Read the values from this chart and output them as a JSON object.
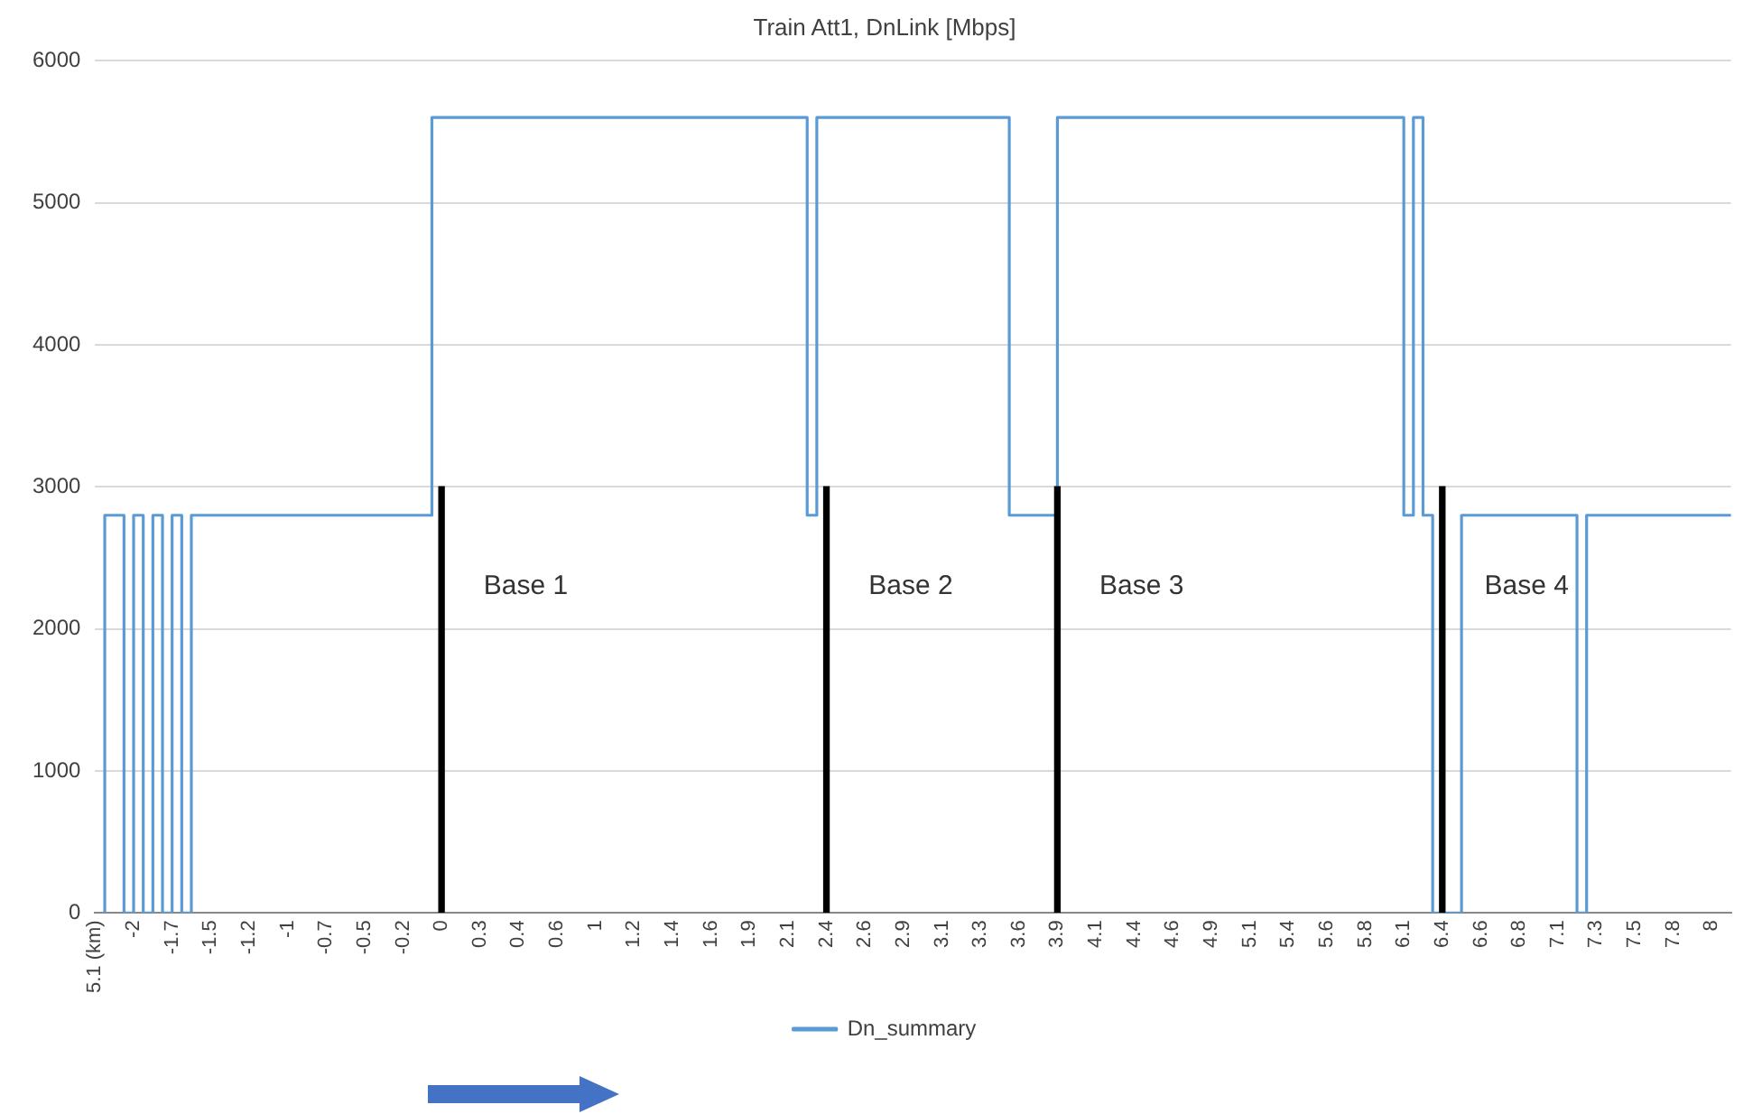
{
  "chart_data": {
    "type": "step",
    "title": "Train Att1, DnLink [Mbps]",
    "categories": [
      "5.1 (km)",
      null,
      null,
      null,
      "-2",
      null,
      null,
      null,
      "-1.7",
      null,
      null,
      null,
      "-1.5",
      null,
      null,
      null,
      "-1.2",
      null,
      null,
      null,
      "-1",
      null,
      null,
      null,
      "-0.7",
      null,
      null,
      null,
      "-0.5",
      null,
      null,
      null,
      "-0.2",
      null,
      null,
      null,
      "0",
      null,
      null,
      null,
      "0.3",
      null,
      null,
      null,
      "0.4",
      null,
      null,
      null,
      "0.6",
      null,
      null,
      null,
      "1",
      null,
      null,
      null,
      "1.2",
      null,
      null,
      null,
      "1.4",
      null,
      null,
      null,
      "1.6",
      null,
      null,
      null,
      "1.9",
      null,
      null,
      null,
      "2.1",
      null,
      null,
      null,
      "2.4",
      null,
      null,
      null,
      "2.6",
      null,
      null,
      null,
      "2.9",
      null,
      null,
      null,
      "3.1",
      null,
      null,
      null,
      "3.3",
      null,
      null,
      null,
      "3.6",
      null,
      null,
      null,
      "3.9",
      null,
      null,
      null,
      "4.1",
      null,
      null,
      null,
      "4.4",
      null,
      null,
      null,
      "4.6",
      null,
      null,
      null,
      "4.9",
      null,
      null,
      null,
      "5.1",
      null,
      null,
      null,
      "5.4",
      null,
      null,
      null,
      "5.6",
      null,
      null,
      null,
      "5.8",
      null,
      null,
      null,
      "6.1",
      null,
      null,
      null,
      "6.4",
      null,
      null,
      null,
      "6.6",
      null,
      null,
      null,
      "6.8",
      null,
      null,
      null,
      "7.1",
      null,
      null,
      null,
      "7.3",
      null,
      null,
      null,
      "7.5",
      null,
      null,
      null,
      "7.8",
      null,
      null,
      null,
      "8",
      null,
      null
    ],
    "series": [
      {
        "name": "Dn_summary",
        "color": "#5b9bd5",
        "values": [
          null,
          0,
          2800,
          2800,
          0,
          2800,
          0,
          2800,
          0,
          2800,
          0,
          2800,
          2800,
          2800,
          2800,
          2800,
          2800,
          2800,
          2800,
          2800,
          2800,
          2800,
          2800,
          2800,
          2800,
          2800,
          2800,
          2800,
          2800,
          2800,
          2800,
          2800,
          2800,
          2800,
          2800,
          2800,
          5600,
          5600,
          5600,
          5600,
          5600,
          5600,
          5600,
          5600,
          5600,
          5600,
          5600,
          5600,
          5600,
          5600,
          5600,
          5600,
          5600,
          5600,
          5600,
          5600,
          5600,
          5600,
          5600,
          5600,
          5600,
          5600,
          5600,
          5600,
          5600,
          5600,
          5600,
          5600,
          5600,
          5600,
          5600,
          5600,
          5600,
          5600,
          5600,
          2800,
          5600,
          5600,
          5600,
          5600,
          5600,
          5600,
          5600,
          5600,
          5600,
          5600,
          5600,
          5600,
          5600,
          5600,
          5600,
          5600,
          5600,
          5600,
          5600,
          5600,
          2800,
          2800,
          2800,
          2800,
          2800,
          5600,
          5600,
          5600,
          5600,
          5600,
          5600,
          5600,
          5600,
          5600,
          5600,
          5600,
          5600,
          5600,
          5600,
          5600,
          5600,
          5600,
          5600,
          5600,
          5600,
          5600,
          5600,
          5600,
          5600,
          5600,
          5600,
          5600,
          5600,
          5600,
          5600,
          5600,
          5600,
          5600,
          5600,
          5600,
          5600,
          2800,
          5600,
          2800,
          0,
          0,
          0,
          2800,
          2800,
          2800,
          2800,
          2800,
          2800,
          2800,
          2800,
          2800,
          2800,
          2800,
          2800,
          0,
          2800,
          2800,
          2800,
          2800,
          2800,
          2800,
          2800,
          2800,
          2800,
          2800,
          2800,
          2800,
          2800,
          2800,
          2800
        ]
      },
      {
        "color": "#000000",
        "type": "bar",
        "values": [
          null,
          null,
          null,
          null,
          null,
          null,
          null,
          null,
          null,
          null,
          null,
          null,
          null,
          null,
          null,
          null,
          null,
          null,
          null,
          null,
          null,
          null,
          null,
          null,
          null,
          null,
          null,
          null,
          null,
          null,
          null,
          null,
          null,
          null,
          null,
          null,
          3000,
          null,
          null,
          null,
          null,
          null,
          null,
          null,
          null,
          null,
          null,
          null,
          null,
          null,
          null,
          null,
          null,
          null,
          null,
          null,
          null,
          null,
          null,
          null,
          null,
          null,
          null,
          null,
          null,
          null,
          null,
          null,
          null,
          null,
          null,
          null,
          null,
          null,
          null,
          null,
          3000,
          null,
          null,
          null,
          null,
          null,
          null,
          null,
          null,
          null,
          null,
          null,
          null,
          null,
          null,
          null,
          null,
          null,
          null,
          null,
          null,
          null,
          null,
          null,
          3000,
          null,
          null,
          null,
          null,
          null,
          null,
          null,
          null,
          null,
          null,
          null,
          null,
          null,
          null,
          null,
          null,
          null,
          null,
          null,
          null,
          null,
          null,
          null,
          null,
          null,
          null,
          null,
          null,
          null,
          null,
          null,
          null,
          null,
          null,
          null,
          null,
          null,
          null,
          null,
          3000,
          null,
          null,
          null,
          null,
          null,
          null,
          null,
          null,
          null,
          null,
          null,
          null,
          null,
          null,
          null,
          null,
          null,
          null,
          null,
          null,
          null,
          null,
          null,
          null,
          null,
          null,
          null,
          null,
          null,
          null
        ]
      }
    ],
    "ylim": [
      0,
      6000
    ],
    "yticks": [
      0,
      1000,
      2000,
      3000,
      4000,
      5000,
      6000
    ],
    "grid": "y",
    "legend": "bottom",
    "annotations": [
      {
        "text": "Base 1",
        "x": "0",
        "y": 2300
      },
      {
        "text": "Base 2",
        "x": "2.4",
        "y": 2300
      },
      {
        "text": "Base 3",
        "x": "3.9",
        "y": 2300
      },
      {
        "text": "Base 4",
        "x": "6.4",
        "y": 2300
      }
    ]
  }
}
